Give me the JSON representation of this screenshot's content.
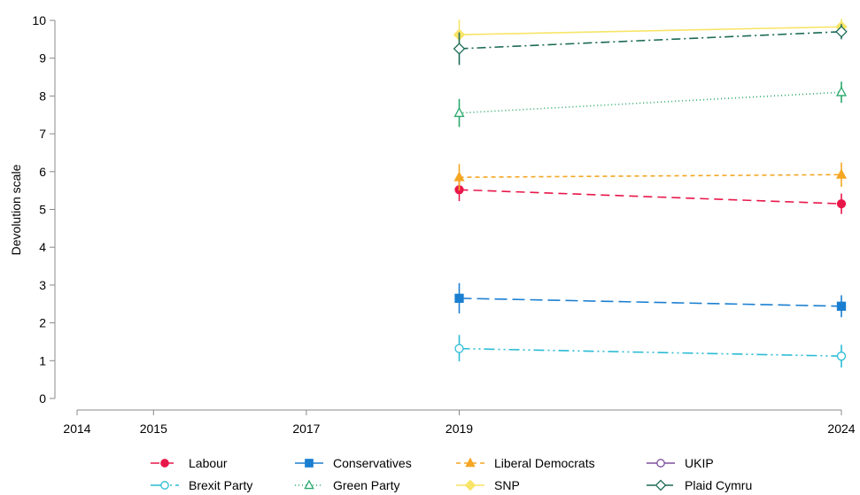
{
  "chart_data": {
    "type": "line",
    "title": "",
    "xlabel": "",
    "ylabel": "Devolution scale",
    "x_ticks": [
      2014,
      2015,
      2017,
      2019,
      2024
    ],
    "xlim": [
      2014,
      2024
    ],
    "ylim": [
      0,
      10
    ],
    "y_ticks": [
      0,
      1,
      2,
      3,
      4,
      5,
      6,
      7,
      8,
      9,
      10
    ],
    "grid": false,
    "legend_position": "bottom",
    "series": [
      {
        "name": "Labour",
        "color": "#e8174a",
        "dash": "10,6",
        "marker": "circle-filled",
        "points": [
          {
            "x": 2019,
            "y": 5.52,
            "lo": 5.22,
            "hi": 5.82
          },
          {
            "x": 2024,
            "y": 5.15,
            "lo": 4.88,
            "hi": 5.42
          }
        ]
      },
      {
        "name": "Conservatives",
        "color": "#1b7fd1",
        "dash": "14,6",
        "marker": "square-filled",
        "points": [
          {
            "x": 2019,
            "y": 2.65,
            "lo": 2.25,
            "hi": 3.05
          },
          {
            "x": 2024,
            "y": 2.44,
            "lo": 2.15,
            "hi": 2.73
          }
        ]
      },
      {
        "name": "Liberal Democrats",
        "color": "#f5a623",
        "dash": "5,4",
        "marker": "triangle-filled",
        "points": [
          {
            "x": 2019,
            "y": 5.85,
            "lo": 5.5,
            "hi": 6.2
          },
          {
            "x": 2024,
            "y": 5.92,
            "lo": 5.6,
            "hi": 6.24
          }
        ]
      },
      {
        "name": "UKIP",
        "color": "#7b4f9d",
        "dash": "",
        "marker": "circle-open",
        "points": []
      },
      {
        "name": "Brexit Party",
        "color": "#2bbcd4",
        "dash": "12,4,2,4,2,4",
        "marker": "circle-open",
        "points": [
          {
            "x": 2019,
            "y": 1.32,
            "lo": 0.98,
            "hi": 1.68
          },
          {
            "x": 2024,
            "y": 1.12,
            "lo": 0.82,
            "hi": 1.42
          }
        ]
      },
      {
        "name": "Green Party",
        "color": "#2aa86b",
        "dash": "1,3",
        "marker": "triangle-open",
        "points": [
          {
            "x": 2019,
            "y": 7.55,
            "lo": 7.18,
            "hi": 7.92
          },
          {
            "x": 2024,
            "y": 8.1,
            "lo": 7.82,
            "hi": 8.38
          }
        ]
      },
      {
        "name": "SNP",
        "color": "#f8e467",
        "dash": "",
        "marker": "diamond-filled",
        "points": [
          {
            "x": 2019,
            "y": 9.62,
            "lo": 9.22,
            "hi": 10.02
          },
          {
            "x": 2024,
            "y": 9.83,
            "lo": 9.62,
            "hi": 10.04
          }
        ]
      },
      {
        "name": "Plaid Cymru",
        "color": "#1d6b57",
        "dash": "10,4,2,4",
        "marker": "diamond-open",
        "points": [
          {
            "x": 2019,
            "y": 9.25,
            "lo": 8.82,
            "hi": 9.68
          },
          {
            "x": 2024,
            "y": 9.7,
            "lo": 9.5,
            "hi": 9.9
          }
        ]
      }
    ]
  }
}
